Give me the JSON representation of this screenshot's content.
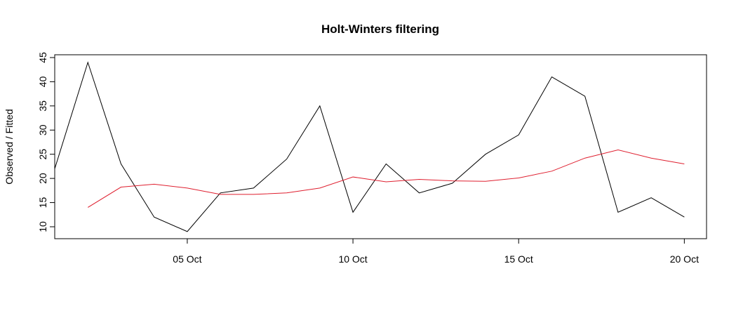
{
  "chart_data": {
    "type": "line",
    "title": "Holt-Winters filtering",
    "ylabel": "Observed / Fitted",
    "x": [
      1,
      2,
      3,
      4,
      5,
      6,
      7,
      8,
      9,
      10,
      11,
      12,
      13,
      14,
      15,
      16,
      17,
      18,
      19,
      20
    ],
    "series": [
      {
        "name": "Observed",
        "color": "#000000",
        "values": [
          22,
          44,
          23,
          12,
          9,
          17,
          18,
          24,
          35,
          13,
          23,
          17,
          19,
          25,
          29,
          41,
          37,
          13,
          16,
          12
        ]
      },
      {
        "name": "Fitted",
        "color": "#df1f2f",
        "values": [
          null,
          14,
          18.2,
          18.8,
          18,
          16.7,
          16.7,
          17,
          18,
          20.3,
          19.3,
          19.8,
          19.5,
          19.4,
          20.1,
          21.5,
          24.2,
          25.9,
          24.2,
          23
        ]
      }
    ],
    "xlim": [
      1,
      20.67
    ],
    "xticks": [
      {
        "value": 5,
        "label": "05 Oct"
      },
      {
        "value": 10,
        "label": "10 Oct"
      },
      {
        "value": 15,
        "label": "15 Oct"
      },
      {
        "value": 20,
        "label": "20 Oct"
      }
    ],
    "ylim": [
      7.53,
      45.58
    ],
    "yticks": [
      10,
      15,
      20,
      25,
      30,
      35,
      40,
      45
    ]
  }
}
